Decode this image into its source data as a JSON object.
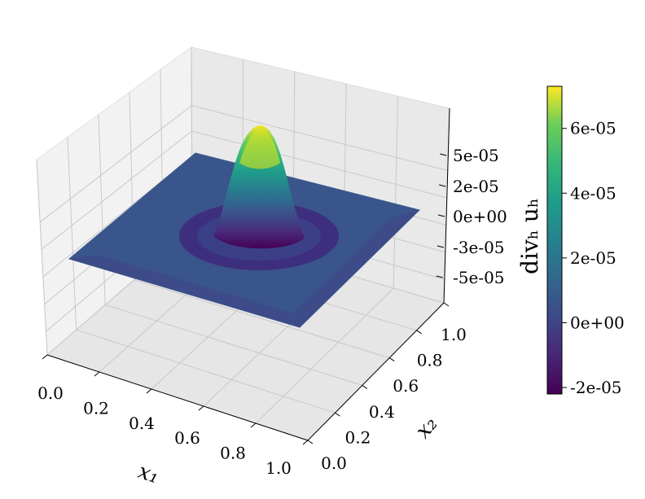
{
  "chart_data": {
    "type": "surface3d",
    "title": "",
    "xlabel": "x₁",
    "ylabel": "x₂",
    "zlabel": "",
    "x_ticks": [
      "0.0",
      "0.2",
      "0.4",
      "0.6",
      "0.8",
      "1.0"
    ],
    "y_ticks": [
      "0.0",
      "0.2",
      "0.4",
      "0.6",
      "0.8",
      "1.0"
    ],
    "z_ticks": [
      "5e-05",
      "2e-05",
      "0e+00",
      "-3e-05",
      "-5e-05"
    ],
    "xlim": [
      0,
      1
    ],
    "ylim": [
      0,
      1
    ],
    "grid": true,
    "colormap": "viridis",
    "surface": {
      "description_values": {
        "peak_center": [
          0.5,
          0.5
        ],
        "peak_value": 7.3e-05,
        "trough_ring_radius": 0.22,
        "trough_value": -2.2e-05,
        "baseline": 0.0
      }
    },
    "colorbar": {
      "label": "divₕ uₕ",
      "range": [
        -2.2e-05,
        7.3e-05
      ],
      "ticks": [
        {
          "value": 6e-05,
          "label": "6e-05"
        },
        {
          "value": 4e-05,
          "label": "4e-05"
        },
        {
          "value": 2e-05,
          "label": "2e-05"
        },
        {
          "value": 0,
          "label": "0e+00"
        },
        {
          "value": -2e-05,
          "label": "-2e-05"
        }
      ]
    }
  }
}
